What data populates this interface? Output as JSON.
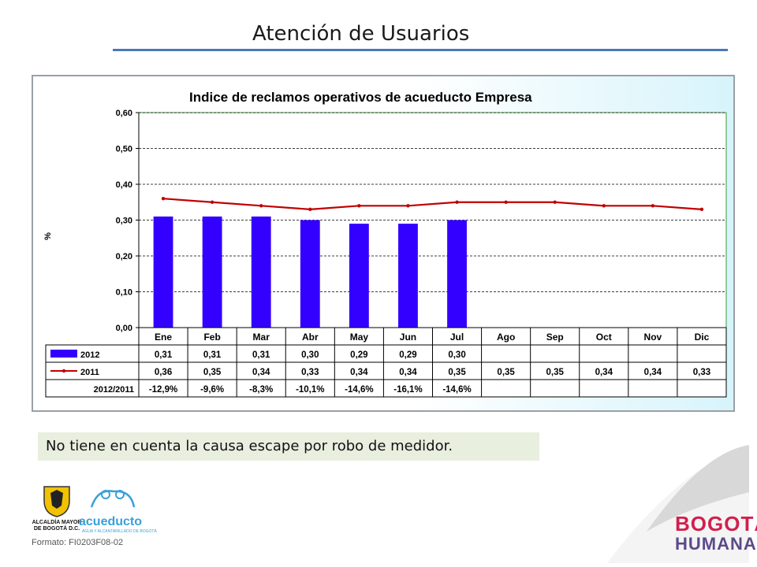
{
  "slide": {
    "title": "Atención de Usuarios",
    "note": "No tiene en cuenta la causa escape por robo de medidor.",
    "footer": "Formato: FI0203F08-02",
    "logo_left": "ALCALDÍA MAYOR DE BOGOTÁ D.C.",
    "logo_acueducto": "acueducto",
    "logo_acueducto_sub": "AGUA Y ALCANTARILLADO DE BOGOTÁ",
    "brand_line1": "BOGOTÁ",
    "brand_line2": "HUMANA"
  },
  "colors": {
    "bar": "#3300ff",
    "line": "#c00000",
    "title_rule": "#4a78b8",
    "note_bg": "#e9efdf"
  },
  "chart_data": {
    "type": "bar",
    "title": "Indice de reclamos operativos de acueducto Empresa",
    "ylabel": "%",
    "ylim": [
      0,
      0.6
    ],
    "yticks": [
      "0,00",
      "0,10",
      "0,20",
      "0,30",
      "0,40",
      "0,50",
      "0,60"
    ],
    "categories": [
      "Ene",
      "Feb",
      "Mar",
      "Abr",
      "May",
      "Jun",
      "Jul",
      "Ago",
      "Sep",
      "Oct",
      "Nov",
      "Dic"
    ],
    "series": [
      {
        "name": "2012",
        "type": "bar",
        "values": [
          0.31,
          0.31,
          0.31,
          0.3,
          0.29,
          0.29,
          0.3,
          null,
          null,
          null,
          null,
          null
        ],
        "labels": [
          "0,31",
          "0,31",
          "0,31",
          "0,30",
          "0,29",
          "0,29",
          "0,30",
          "",
          "",
          "",
          "",
          ""
        ]
      },
      {
        "name": "2011",
        "type": "line",
        "values": [
          0.36,
          0.35,
          0.34,
          0.33,
          0.34,
          0.34,
          0.35,
          0.35,
          0.35,
          0.34,
          0.34,
          0.33
        ],
        "labels": [
          "0,36",
          "0,35",
          "0,34",
          "0,33",
          "0,34",
          "0,34",
          "0,35",
          "0,35",
          "0,35",
          "0,34",
          "0,34",
          "0,33"
        ]
      },
      {
        "name": "2012/2011",
        "type": "table-row",
        "labels": [
          "-12,9%",
          "-9,6%",
          "-8,3%",
          "-10,1%",
          "-14,6%",
          "-16,1%",
          "-14,6%",
          "",
          "",
          "",
          "",
          ""
        ]
      }
    ],
    "grid": true,
    "legend": "data-table"
  }
}
